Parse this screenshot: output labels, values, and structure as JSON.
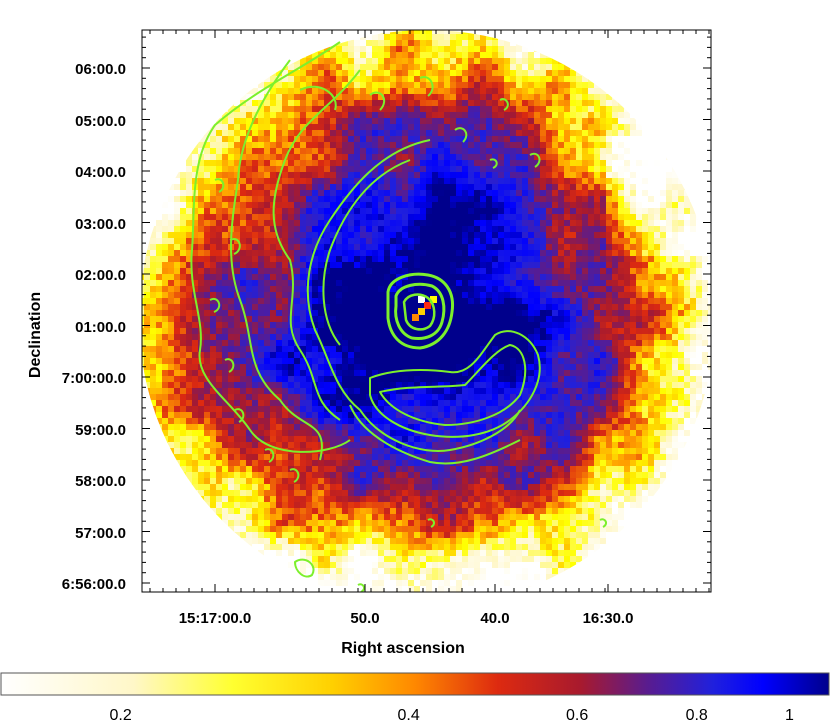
{
  "plot": {
    "xlabel": "Right ascension",
    "ylabel": "Declination",
    "x_ticks": [
      "15:17:00.0",
      "50.0",
      "40.0",
      "16:30.0"
    ],
    "y_ticks": [
      "06:00.0",
      "05:00.0",
      "04:00.0",
      "03:00.0",
      "02:00.0",
      "01:00.0",
      "7:00:00.0",
      "59:00.0",
      "58:00.0",
      "57:00.0",
      "6:56:00.0"
    ]
  },
  "colorbar": {
    "ticks": [
      {
        "value": 0.2,
        "label": "0.2"
      },
      {
        "value": 0.4,
        "label": "0.4"
      },
      {
        "value": 0.6,
        "label": "0.6"
      },
      {
        "value": 0.8,
        "label": "0.8"
      },
      {
        "value": 1.0,
        "label": "1"
      }
    ],
    "range": [
      0.15,
      1.1
    ],
    "stops": [
      "#ffffff",
      "#fff7c8",
      "#ffff00",
      "#ff9a00",
      "#dd2a10",
      "#a81a2e",
      "#5a1c8e",
      "#2020dd",
      "#0000ff",
      "#00008c"
    ]
  },
  "colors": {
    "contour": "#7cf02c",
    "frame": "#000000"
  }
}
